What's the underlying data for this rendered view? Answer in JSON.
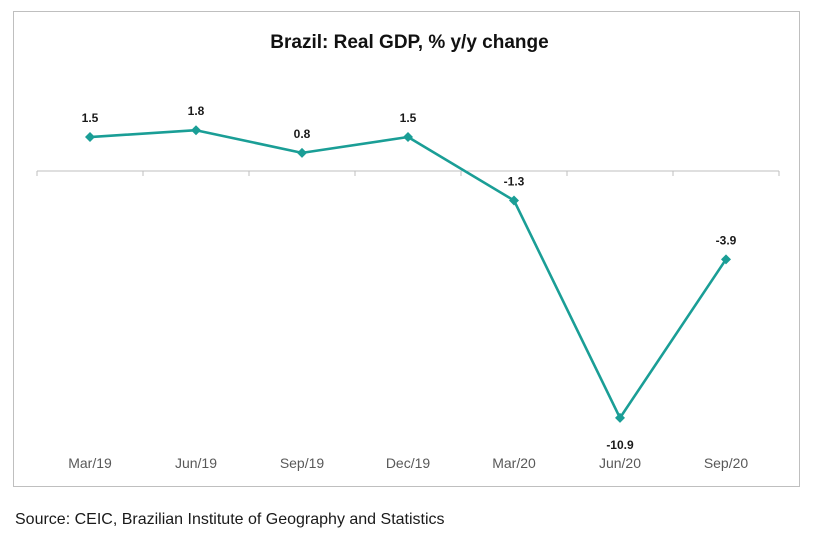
{
  "chart_data": {
    "type": "line",
    "title": "Brazil: Real GDP, % y/y change",
    "categories": [
      "Mar/19",
      "Jun/19",
      "Sep/19",
      "Dec/19",
      "Mar/20",
      "Jun/20",
      "Sep/20"
    ],
    "series": [
      {
        "name": "Real GDP, % y/y change",
        "values": [
          1.5,
          1.8,
          0.8,
          1.5,
          -1.3,
          -10.9,
          -3.9
        ],
        "labels": [
          "1.5",
          "1.8",
          "0.8",
          "1.5",
          "-1.3",
          "-10.9",
          "-3.9"
        ]
      }
    ],
    "xlabel": "",
    "ylabel": "",
    "ylim": [
      -12,
      3
    ],
    "grid": false,
    "legend": "none",
    "color": "#1a9e96"
  },
  "source": "Source: CEIC, Brazilian Institute of Geography and Statistics"
}
